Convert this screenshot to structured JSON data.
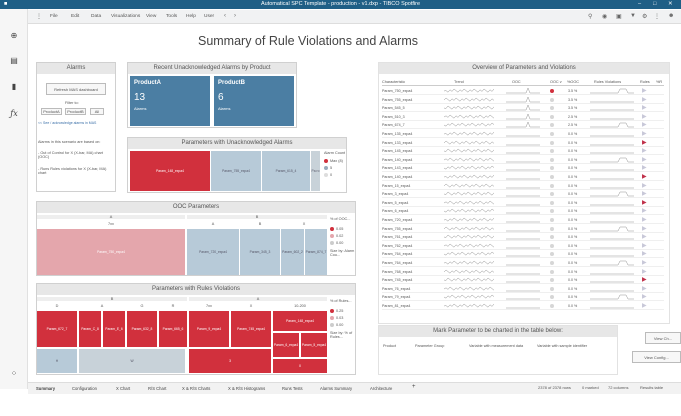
{
  "window": {
    "title": "Automatical SPC Template - production - v1.dxp - TIBCO Spotfire"
  },
  "menu": {
    "items": [
      "File",
      "Edit",
      "Data",
      "Visualizations",
      "View",
      "Tools",
      "Help",
      "User"
    ]
  },
  "page_title": "Summary of Rule Violations and Alarms",
  "alarms": {
    "header": "Alarms",
    "refresh_btn": "Refresh MAS dashboard",
    "filter_label": "Filter to:",
    "filters": [
      "ProductA",
      "ProductB",
      "All"
    ],
    "see_link": "<< See / acknowledge alarms in MAS",
    "note1": "Alarms in this scenario are based on:",
    "note2": "- Out of Control for X (X-bar, MA) chart (OOC)",
    "note3": "- Runs Rules violations for X (X-bar, MA) chart"
  },
  "recent": {
    "header": "Recent Unacknowledged Alarms by Product",
    "tiles": [
      {
        "name": "ProductA",
        "count": "13",
        "sub": "Alarms"
      },
      {
        "name": "ProductB",
        "count": "6",
        "sub": "Alarms"
      }
    ]
  },
  "params_unack": {
    "header": "Parameters with Unacknowledged Alarms",
    "cells": [
      "Param_148_expa4",
      "Param_755_expa4",
      "Param_615_4",
      "Pa ro"
    ],
    "legend_title": "Alarm Count",
    "legend": [
      "Max (8)",
      "5",
      "0"
    ]
  },
  "ooc": {
    "header": "OOC Parameters",
    "top": [
      "A",
      "B"
    ],
    "row2": [
      "7xx",
      "A",
      "B",
      "X"
    ],
    "cells": [
      "Param_750_expa4",
      "Param_720_expa4",
      "Param_345_3",
      "Param_602_2",
      "Param_874_7"
    ],
    "legend_title": "% of OOC...",
    "legend": [
      "0.05",
      "0.02",
      "0.00"
    ],
    "size_note": "Size by: Alarm Cou..."
  },
  "rules": {
    "header": "Parameters with Rules Violations",
    "top": [
      "B",
      "A"
    ],
    "row2": [
      "D",
      "A",
      "G",
      "R",
      "7xx",
      "X",
      "10-200"
    ],
    "cells": [
      "Param_672_7",
      "Param_C_8",
      "Param_E_6",
      "Param_632_8",
      "Param_665_6",
      "Param_9_expa4",
      "Param_745_expa4",
      "Param_148_expa4",
      "Param_6_expa4",
      "Param_5_expa4"
    ],
    "sub": [
      "H",
      "W",
      "3",
      "X"
    ],
    "legend_title": "% of Rules...",
    "legend": [
      "0.25",
      "0.03",
      "0.00"
    ],
    "size_note": "Size by: % of Rules..."
  },
  "overview": {
    "header": "Overview of Parameters and Violations",
    "columns": [
      "Characteristic",
      "Trend",
      "OOC",
      "OOC v",
      "%OOC",
      "Rules Violations",
      "Rules",
      "%R"
    ],
    "rows": [
      {
        "name": "Param_750_expa4",
        "pct": "3.5 %",
        "ooc": "red",
        "arrow": "#c8c8d8"
      },
      {
        "name": "Param_755_expa4",
        "pct": "3.5 %",
        "ooc": "grey",
        "arrow": "#c8c8d8"
      },
      {
        "name": "Param_545_5",
        "pct": "3.5 %",
        "ooc": "grey",
        "arrow": "#c8c8d8"
      },
      {
        "name": "Param_510_3",
        "pct": "2.5 %",
        "ooc": "grey",
        "arrow": "#c8c8d8"
      },
      {
        "name": "Param_674_7",
        "pct": "2.5 %",
        "ooc": "grey",
        "arrow": "#c8c8d8"
      },
      {
        "name": "Param_135_expa4",
        "pct": "0.0 %",
        "ooc": "grey",
        "arrow": "#c8c8d8"
      },
      {
        "name": "Param_133_expa4",
        "pct": "0.0 %",
        "ooc": "grey",
        "arrow": "#c0304a"
      },
      {
        "name": "Param_145_expa4",
        "pct": "0.0 %",
        "ooc": "grey",
        "arrow": "#c8c8d8"
      },
      {
        "name": "Param_140_expa4",
        "pct": "0.0 %",
        "ooc": "grey",
        "arrow": "#c8c8d8"
      },
      {
        "name": "Param_143_expa4",
        "pct": "0.0 %",
        "ooc": "grey",
        "arrow": "#c8c8d8"
      },
      {
        "name": "Param_140_expa4",
        "pct": "0.0 %",
        "ooc": "grey",
        "arrow": "#c0304a"
      },
      {
        "name": "Param_15_expa4",
        "pct": "0.0 %",
        "ooc": "grey",
        "arrow": "#c8c8d8"
      },
      {
        "name": "Param_3_expa4",
        "pct": "0.0 %",
        "ooc": "grey",
        "arrow": "#c8c8d8"
      },
      {
        "name": "Param_5_expa4",
        "pct": "0.0 %",
        "ooc": "grey",
        "arrow": "#c0304a"
      },
      {
        "name": "Param_6_expa4",
        "pct": "0.0 %",
        "ooc": "grey",
        "arrow": "#c8c8d8"
      },
      {
        "name": "Param_720_expa4",
        "pct": "0.0 %",
        "ooc": "grey",
        "arrow": "#c8c8d8"
      },
      {
        "name": "Param_755_expa4",
        "pct": "0.0 %",
        "ooc": "grey",
        "arrow": "#c8c8d8"
      },
      {
        "name": "Param_761_expa4",
        "pct": "0.0 %",
        "ooc": "grey",
        "arrow": "#c8c8d8"
      },
      {
        "name": "Param_762_expa4",
        "pct": "0.0 %",
        "ooc": "grey",
        "arrow": "#c8c8d8"
      },
      {
        "name": "Param_764_expa4",
        "pct": "0.0 %",
        "ooc": "grey",
        "arrow": "#c8c8d8"
      },
      {
        "name": "Param_764_expa4",
        "pct": "0.0 %",
        "ooc": "grey",
        "arrow": "#c8c8d8"
      },
      {
        "name": "Param_768_expa4",
        "pct": "0.0 %",
        "ooc": "grey",
        "arrow": "#c8c8d8"
      },
      {
        "name": "Param_745_expa4",
        "pct": "0.0 %",
        "ooc": "grey",
        "arrow": "#c0304a"
      },
      {
        "name": "Param_76_expa4",
        "pct": "0.0 %",
        "ooc": "grey",
        "arrow": "#c8c8d8"
      },
      {
        "name": "Param_79_expa4",
        "pct": "0.0 %",
        "ooc": "grey",
        "arrow": "#c8c8d8"
      },
      {
        "name": "Param_81_expa4",
        "pct": "0.0 %",
        "ooc": "grey",
        "arrow": "#c8c8d8"
      }
    ]
  },
  "mark": {
    "header": "Mark Parameter to be charted in the table below:",
    "columns": [
      "Product",
      "Parameter Group",
      "Variable with measurement data",
      "Variable with sample identifier"
    ],
    "btn1": "View Ch...",
    "btn2": "View Config..."
  },
  "tabs": [
    "Summary",
    "Configuration",
    "X Chart",
    "R/S Chart",
    "X & R/S Charts",
    "X & R/S Histograms",
    "Runs Tests",
    "Alarms Summary",
    "Architecture"
  ],
  "status": {
    "rows": "2378 of 2378 rows",
    "marked": "0 marked",
    "columns": "72 columns",
    "table": "Results table"
  }
}
